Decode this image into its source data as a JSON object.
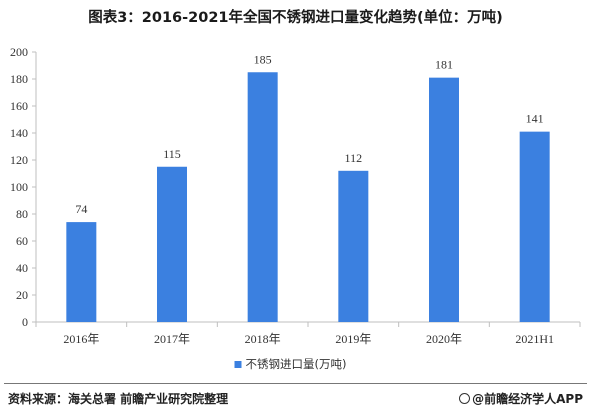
{
  "title": "图表3：2016-2021年全国不锈钢进口量变化趋势(单位：万吨)",
  "footer": {
    "source": "资料来源：海关总署 前瞻产业研究院整理",
    "brand": "@前瞻经济学人APP"
  },
  "colors": {
    "bar": "#3b80e0",
    "axis": "#bfbfbf",
    "text": "#333333"
  },
  "chart_data": {
    "type": "bar",
    "title": "图表3：2016-2021年全国不锈钢进口量变化趋势(单位：万吨)",
    "categories": [
      "2016年",
      "2017年",
      "2018年",
      "2019年",
      "2020年",
      "2021H1"
    ],
    "series": [
      {
        "name": "不锈钢进口量(万吨)",
        "values": [
          74,
          115,
          185,
          112,
          181,
          141
        ]
      }
    ],
    "data_labels": [
      "74",
      "115",
      "185",
      "112",
      "181",
      "141"
    ],
    "ylim": [
      0,
      200
    ],
    "yticks": [
      0,
      20,
      40,
      60,
      80,
      100,
      120,
      140,
      160,
      180,
      200
    ],
    "grid": false,
    "legend": "bottom"
  }
}
